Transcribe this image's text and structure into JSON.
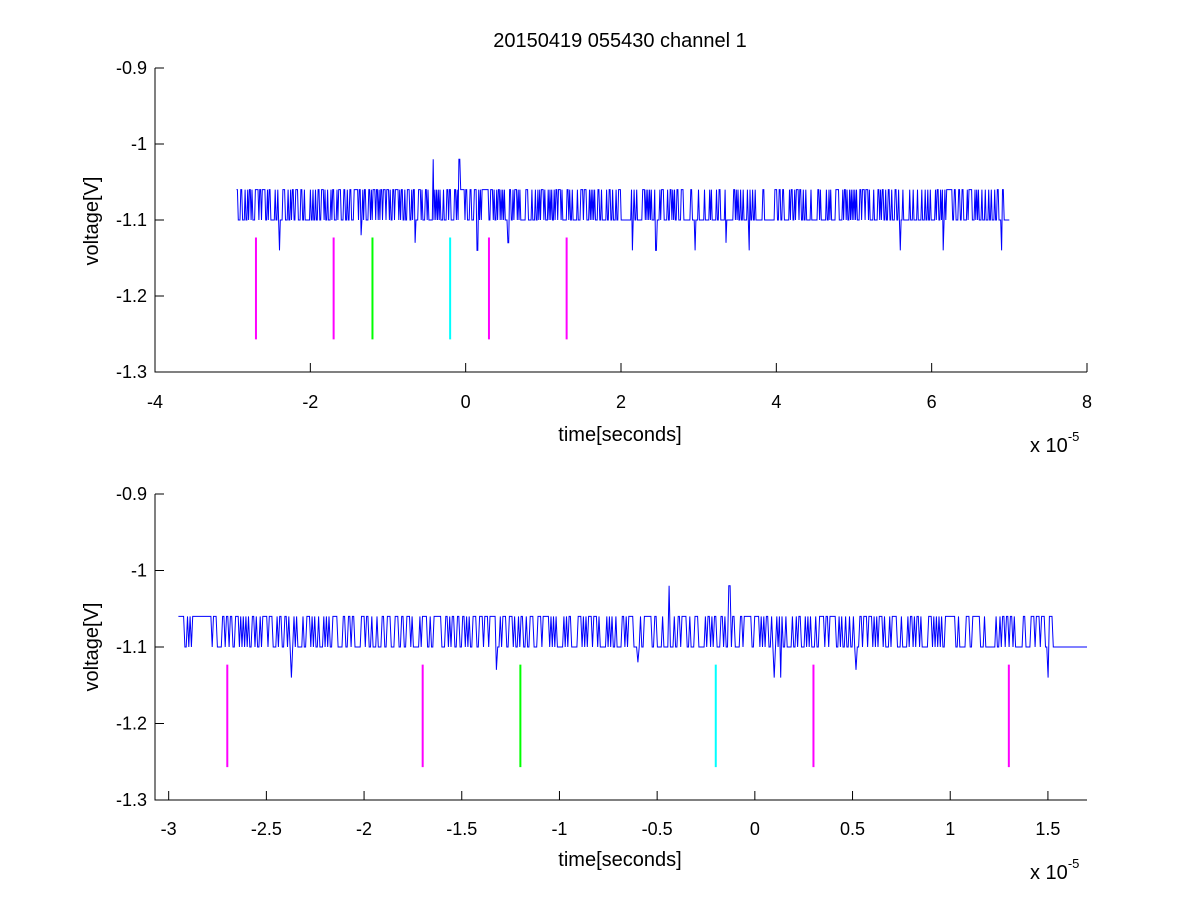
{
  "figure": {
    "title": "20150419 055430 channel 1"
  },
  "chart_data": [
    {
      "type": "line",
      "title": "20150419 055430 channel 1",
      "xlabel": "time[seconds]",
      "ylabel": "voltage[V]",
      "x_multiplier_label": "x 10",
      "x_multiplier_exponent": "-5",
      "xlim": [
        -4,
        8
      ],
      "ylim": [
        -1.3,
        -0.9
      ],
      "xticks": [
        -4,
        -2,
        0,
        2,
        4,
        6,
        8
      ],
      "xtick_labels": [
        "-4",
        "-2",
        "0",
        "2",
        "4",
        "6",
        "8"
      ],
      "yticks": [
        -0.9,
        -1,
        -1.1,
        -1.2,
        -1.3
      ],
      "ytick_labels": [
        "-0.9",
        "-1",
        "-1.1",
        "-1.2",
        "-1.3"
      ],
      "grid": false,
      "series": [
        {
          "color": "#0000ff",
          "x_range": [
            -2.95,
            7.0
          ],
          "baseline": -1.1,
          "levels": [
            -1.06,
            -1.1
          ],
          "dips": [
            {
              "x": -2.4,
              "y": -1.14
            },
            {
              "x": -1.35,
              "y": -1.12
            },
            {
              "x": -0.65,
              "y": -1.13
            },
            {
              "x": 0.15,
              "y": -1.14
            },
            {
              "x": 0.55,
              "y": -1.13
            },
            {
              "x": 2.15,
              "y": -1.14
            },
            {
              "x": 2.45,
              "y": -1.14
            },
            {
              "x": 2.95,
              "y": -1.14
            },
            {
              "x": 3.35,
              "y": -1.13
            },
            {
              "x": 3.65,
              "y": -1.14
            },
            {
              "x": 5.6,
              "y": -1.14
            },
            {
              "x": 6.15,
              "y": -1.14
            },
            {
              "x": 6.9,
              "y": -1.14
            }
          ],
          "spikes": [
            {
              "x": -0.42,
              "y": -1.02
            },
            {
              "x": -0.08,
              "y": -1.02
            }
          ]
        }
      ],
      "markers": [
        {
          "x": -2.7,
          "y_top": -1.123,
          "y_bottom": -1.257,
          "color": "#ff00ff"
        },
        {
          "x": -1.7,
          "y_top": -1.123,
          "y_bottom": -1.257,
          "color": "#ff00ff"
        },
        {
          "x": -1.2,
          "y_top": -1.123,
          "y_bottom": -1.257,
          "color": "#00ff00"
        },
        {
          "x": -0.2,
          "y_top": -1.123,
          "y_bottom": -1.257,
          "color": "#00ffff"
        },
        {
          "x": 0.3,
          "y_top": -1.123,
          "y_bottom": -1.257,
          "color": "#ff00ff"
        },
        {
          "x": 1.3,
          "y_top": -1.123,
          "y_bottom": -1.257,
          "color": "#ff00ff"
        }
      ]
    },
    {
      "type": "line",
      "title": "",
      "xlabel": "time[seconds]",
      "ylabel": "voltage[V]",
      "x_multiplier_label": "x 10",
      "x_multiplier_exponent": "-5",
      "xlim": [
        -3.07,
        1.7
      ],
      "ylim": [
        -1.3,
        -0.9
      ],
      "xticks": [
        -3,
        -2.5,
        -2,
        -1.5,
        -1,
        -0.5,
        0,
        0.5,
        1,
        1.5
      ],
      "xtick_labels": [
        "-3",
        "-2.5",
        "-2",
        "-1.5",
        "-1",
        "-0.5",
        "0",
        "0.5",
        "1",
        "1.5"
      ],
      "yticks": [
        -0.9,
        -1,
        -1.1,
        -1.2,
        -1.3
      ],
      "ytick_labels": [
        "-0.9",
        "-1",
        "-1.1",
        "-1.2",
        "-1.3"
      ],
      "grid": false,
      "series": [
        {
          "color": "#0000ff",
          "x_range": [
            -2.95,
            1.7
          ],
          "baseline": -1.1,
          "levels": [
            -1.06,
            -1.1
          ],
          "dips": [
            {
              "x": -2.37,
              "y": -1.14
            },
            {
              "x": -1.32,
              "y": -1.13
            },
            {
              "x": -0.6,
              "y": -1.12
            },
            {
              "x": 0.1,
              "y": -1.14
            },
            {
              "x": 0.13,
              "y": -1.14
            },
            {
              "x": 0.52,
              "y": -1.13
            },
            {
              "x": 1.5,
              "y": -1.14
            }
          ],
          "spikes": [
            {
              "x": -0.44,
              "y": -1.02
            },
            {
              "x": -0.13,
              "y": -1.02
            }
          ]
        }
      ],
      "markers": [
        {
          "x": -2.7,
          "y_top": -1.123,
          "y_bottom": -1.257,
          "color": "#ff00ff"
        },
        {
          "x": -1.7,
          "y_top": -1.123,
          "y_bottom": -1.257,
          "color": "#ff00ff"
        },
        {
          "x": -1.2,
          "y_top": -1.123,
          "y_bottom": -1.257,
          "color": "#00ff00"
        },
        {
          "x": -0.2,
          "y_top": -1.123,
          "y_bottom": -1.257,
          "color": "#00ffff"
        },
        {
          "x": 0.3,
          "y_top": -1.123,
          "y_bottom": -1.257,
          "color": "#ff00ff"
        },
        {
          "x": 1.3,
          "y_top": -1.123,
          "y_bottom": -1.257,
          "color": "#ff00ff"
        }
      ]
    }
  ]
}
